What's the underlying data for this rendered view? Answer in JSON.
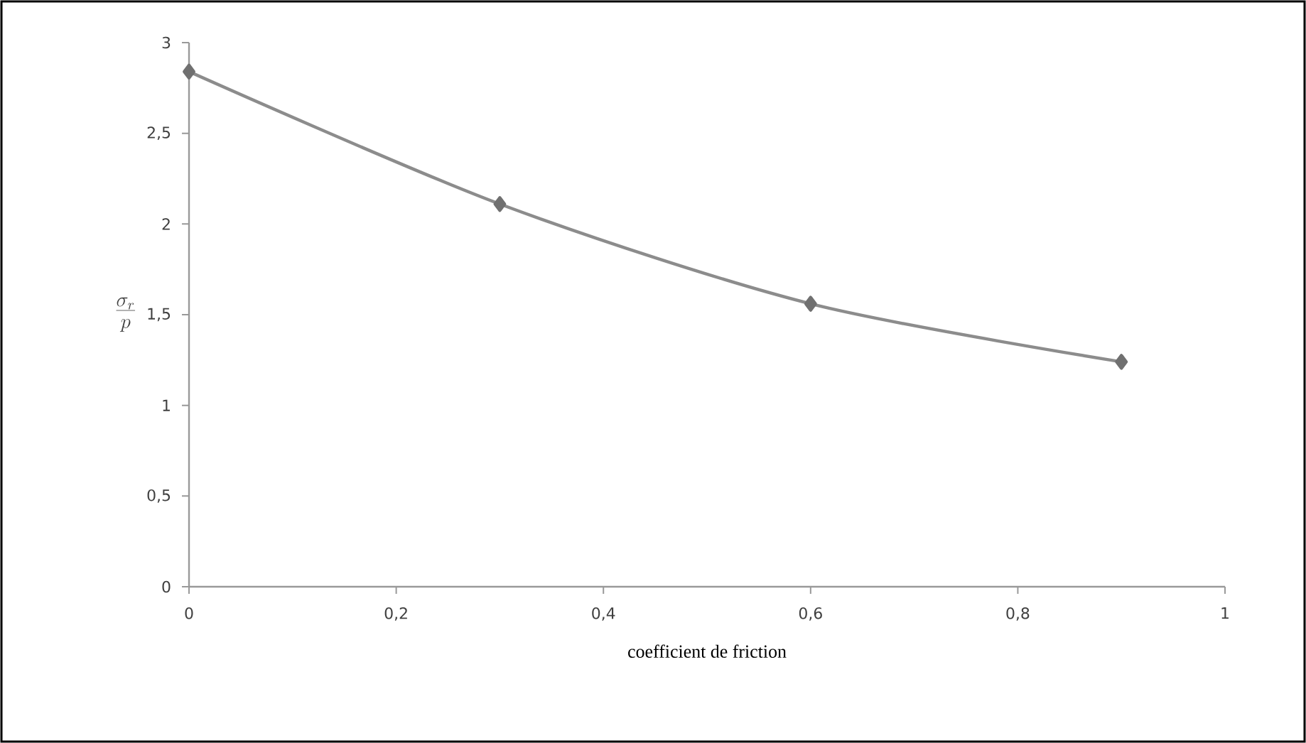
{
  "chart_data": {
    "type": "line",
    "xlabel": "coefficient de friction",
    "ylabel": "\\frac{\\sigma_r}{p}",
    "x": [
      0,
      0.3,
      0.6,
      0.9
    ],
    "series": [
      {
        "color": "#8c8c8c",
        "values": [
          2.84,
          2.11,
          1.56,
          1.24
        ]
      }
    ],
    "xlim": [
      0,
      1
    ],
    "ylim": [
      0,
      3
    ],
    "xticks": [
      0,
      {
        "value": 0.2,
        "label": "0,2"
      },
      {
        "value": 0.4,
        "label": "0,4"
      },
      {
        "value": 0.6,
        "label": "0,6"
      },
      {
        "value": 0.8,
        "label": "0,8"
      },
      1
    ],
    "yticks": [
      0,
      {
        "value": 0.5,
        "label": "0,5"
      },
      1,
      {
        "value": 1.5,
        "label": "1,5"
      },
      2,
      {
        "value": 2.5,
        "label": "2,5"
      },
      3
    ],
    "grid": false,
    "marker": "diamond",
    "line_style": "solid"
  }
}
